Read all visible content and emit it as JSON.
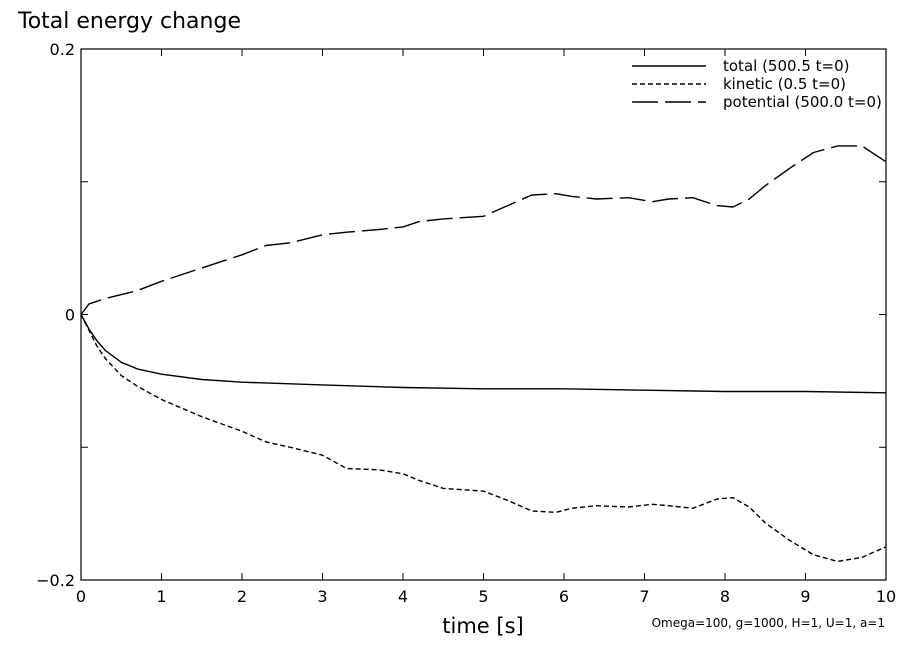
{
  "chart_data": {
    "type": "line",
    "title": "Total energy change",
    "xlabel": "time [s]",
    "ylabel": "",
    "xlim": [
      0,
      10
    ],
    "ylim": [
      -0.2,
      0.2
    ],
    "x_ticks": [
      0,
      1,
      2,
      3,
      4,
      5,
      6,
      7,
      8,
      9,
      10
    ],
    "x_tick_labels": [
      "0",
      "1",
      "2",
      "3",
      "4",
      "5",
      "6",
      "7",
      "8",
      "9",
      "10"
    ],
    "y_ticks": [
      -0.2,
      0,
      0.2
    ],
    "y_tick_labels": [
      "−0.2",
      "0",
      "0.2"
    ],
    "grid": false,
    "legend_position": "top-right",
    "parameters_text": "Omega=100, g=1000, H=1, U=1, a=1",
    "series": [
      {
        "name": "total (500.5 t=0)",
        "line_style": "solid",
        "color": "#000000",
        "x": [
          0,
          0.1,
          0.2,
          0.3,
          0.5,
          0.7,
          1.0,
          1.5,
          2.0,
          3.0,
          4.0,
          5.0,
          6.0,
          7.0,
          8.0,
          9.0,
          10.0
        ],
        "y": [
          0,
          -0.011,
          -0.02,
          -0.027,
          -0.036,
          -0.041,
          -0.045,
          -0.049,
          -0.051,
          -0.053,
          -0.055,
          -0.056,
          -0.056,
          -0.057,
          -0.058,
          -0.058,
          -0.059
        ]
      },
      {
        "name": "kinetic (0.5 t=0)",
        "line_style": "dashed",
        "color": "#000000",
        "x": [
          0,
          0.1,
          0.2,
          0.3,
          0.5,
          0.7,
          1.0,
          1.5,
          2.0,
          2.3,
          2.6,
          3.0,
          3.3,
          3.7,
          4.0,
          4.2,
          4.5,
          5.0,
          5.3,
          5.6,
          5.9,
          6.1,
          6.4,
          6.8,
          7.1,
          7.3,
          7.6,
          7.9,
          8.1,
          8.3,
          8.5,
          8.8,
          9.1,
          9.4,
          9.7,
          10.0
        ],
        "y": [
          0,
          -0.012,
          -0.024,
          -0.033,
          -0.046,
          -0.054,
          -0.064,
          -0.077,
          -0.088,
          -0.096,
          -0.1,
          -0.106,
          -0.116,
          -0.117,
          -0.12,
          -0.125,
          -0.131,
          -0.133,
          -0.14,
          -0.148,
          -0.149,
          -0.146,
          -0.144,
          -0.145,
          -0.143,
          -0.144,
          -0.146,
          -0.139,
          -0.138,
          -0.145,
          -0.157,
          -0.17,
          -0.181,
          -0.186,
          -0.183,
          -0.175
        ]
      },
      {
        "name": "potential (500.0 t=0)",
        "line_style": "long-dashed",
        "color": "#000000",
        "x": [
          0,
          0.1,
          0.3,
          0.5,
          0.7,
          1.0,
          1.5,
          2.0,
          2.3,
          2.6,
          3.0,
          3.3,
          3.7,
          4.0,
          4.2,
          4.5,
          5.0,
          5.3,
          5.6,
          5.9,
          6.1,
          6.4,
          6.8,
          7.1,
          7.3,
          7.6,
          7.9,
          8.1,
          8.3,
          8.5,
          8.8,
          9.1,
          9.4,
          9.7,
          10.0
        ],
        "y": [
          0,
          0.008,
          0.012,
          0.015,
          0.018,
          0.025,
          0.035,
          0.045,
          0.052,
          0.054,
          0.06,
          0.062,
          0.064,
          0.066,
          0.07,
          0.072,
          0.074,
          0.082,
          0.09,
          0.091,
          0.089,
          0.087,
          0.088,
          0.085,
          0.087,
          0.088,
          0.082,
          0.081,
          0.087,
          0.097,
          0.11,
          0.122,
          0.127,
          0.127,
          0.115
        ]
      }
    ]
  }
}
